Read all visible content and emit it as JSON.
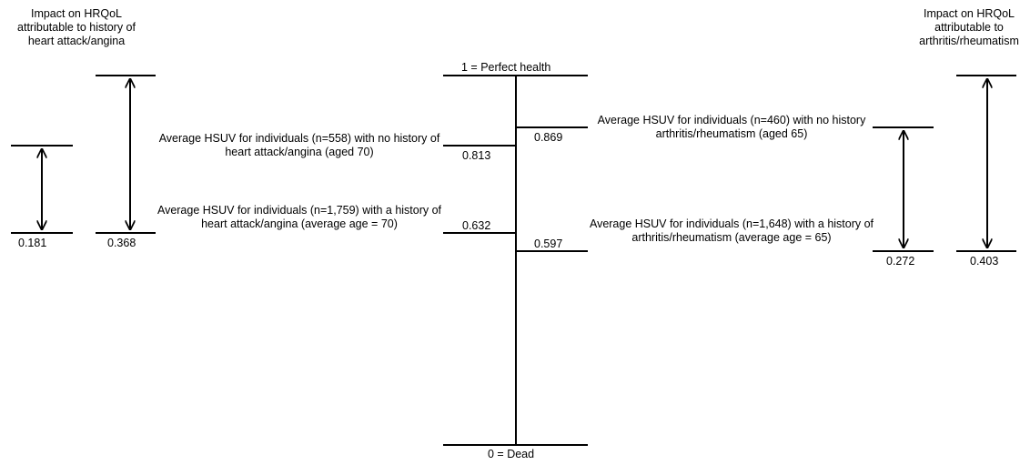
{
  "left_impact": {
    "title": "Impact on HRQoL attributable to history of heart attack/angina",
    "values": [
      "0.181",
      "0.368"
    ]
  },
  "right_impact": {
    "title": "Impact on HRQoL attributable to arthritis/rheumatism",
    "values": [
      "0.272",
      "0.403"
    ]
  },
  "axis": {
    "top_label": "1 = Perfect health",
    "bottom_label": "0 = Dead"
  },
  "heart": {
    "no_history_text": "Average HSUV for individuals (n=558) with no history of heart attack/angina (aged 70)",
    "no_history_value": "0.813",
    "history_text": "Average HSUV for individuals (n=1,759) with a history of heart attack/angina (average age = 70)",
    "history_value": "0.632"
  },
  "arthritis": {
    "no_history_text": "Average HSUV for individuals (n=460) with no history arthritis/rheumatism (aged 65)",
    "no_history_value": "0.869",
    "history_text": "Average HSUV for individuals (n=1,648) with a history of arthritis/rheumatism (average age = 65)",
    "history_value": "0.597"
  }
}
